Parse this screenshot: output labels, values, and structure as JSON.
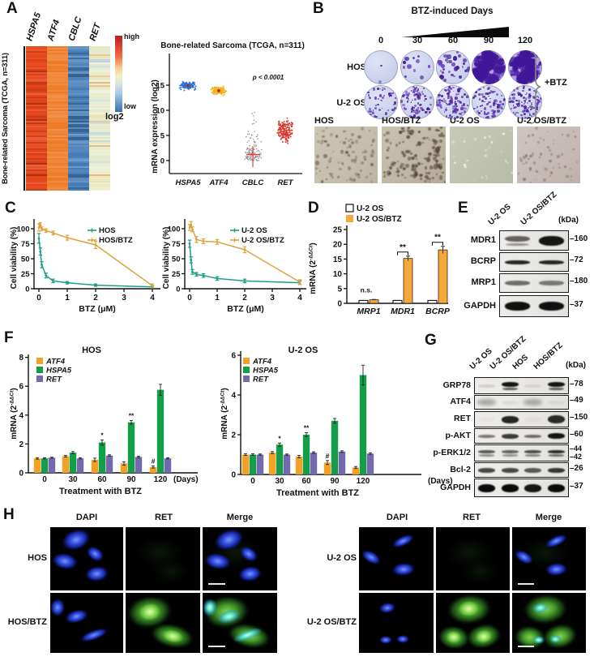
{
  "panels": {
    "A": {
      "label": "A"
    },
    "B": {
      "label": "B"
    },
    "C": {
      "label": "C"
    },
    "D": {
      "label": "D"
    },
    "E": {
      "label": "E"
    },
    "F": {
      "label": "F"
    },
    "G": {
      "label": "G"
    },
    "H": {
      "label": "H"
    }
  },
  "panelA": {
    "heatmap": {
      "side_label": "Bone-related Sarcoma (TCGA, n=311)",
      "columns": [
        "HSPA5",
        "ATF4",
        "CBLC",
        "RET"
      ],
      "colorbar_high": "high",
      "colorbar_low": "low",
      "colorbar_label": "log2"
    }
  },
  "panelB": {
    "title": "BTZ-induced Days",
    "days": [
      "0",
      "30",
      "60",
      "90",
      "120"
    ],
    "rows": [
      {
        "label": "HOS",
        "colony_density": [
          0.02,
          0.1,
          0.28,
          0.88,
          0.97
        ]
      },
      {
        "label": "U-2 OS",
        "colony_density": [
          0.3,
          0.52,
          0.58,
          0.5,
          0.62
        ]
      }
    ],
    "bracket_label": "+BTZ",
    "micrographs": [
      {
        "label": "HOS",
        "tone": "tan"
      },
      {
        "label": "HOS/BTZ",
        "tone": "tan-dense"
      },
      {
        "label": "U-2 OS",
        "tone": "green-smooth"
      },
      {
        "label": "U-2 OS/BTZ",
        "tone": "pink-sparse"
      }
    ]
  },
  "panelE": {
    "lanes": [
      "U-2 OS",
      "U-2 OS/BTZ"
    ],
    "kda_label": "(kDa)",
    "rows": [
      {
        "name": "MDR1",
        "kda": [
          "160"
        ],
        "bands": [
          {
            "v": 0.6,
            "h": 7,
            "d": 1
          },
          {
            "v": 0.95,
            "h": 12
          }
        ]
      },
      {
        "name": "BCRP",
        "kda": [
          "72"
        ],
        "bands": [
          {
            "v": 0.88,
            "h": 5
          },
          {
            "v": 0.88,
            "h": 5
          }
        ]
      },
      {
        "name": "MRP1",
        "kda": [
          "180"
        ],
        "bands": [
          {
            "v": 0.55,
            "h": 6
          },
          {
            "v": 0.5,
            "h": 6
          }
        ]
      },
      {
        "name": "GAPDH",
        "kda": [
          "37"
        ],
        "bands": [
          {
            "v": 0.97,
            "h": 11
          },
          {
            "v": 0.97,
            "h": 11
          }
        ]
      }
    ]
  },
  "panelG": {
    "lanes": [
      "U-2 OS",
      "U-2 OS/BTZ",
      "HOS",
      "HOS/BTZ"
    ],
    "kda_label": "(kDa)",
    "rows": [
      {
        "name": "GRP78",
        "kda": [
          "78"
        ],
        "bands": [
          {
            "v": 0.12,
            "h": 4
          },
          {
            "v": 0.95,
            "h": 6,
            "d": 1
          },
          {
            "v": 0.08,
            "h": 4
          },
          {
            "v": 0.95,
            "h": 6,
            "d": 1
          }
        ]
      },
      {
        "name": "ATF4",
        "kda": [
          "49"
        ],
        "bands": [
          {
            "v": 0.3,
            "h": 8,
            "f": 1
          },
          {
            "v": 0.05,
            "h": 5
          },
          {
            "v": 0.28,
            "h": 8,
            "f": 1
          },
          {
            "v": 0.05,
            "h": 5
          }
        ]
      },
      {
        "name": "RET",
        "kda": [
          "150"
        ],
        "bands": [
          {
            "v": 0.03,
            "h": 6
          },
          {
            "v": 0.88,
            "h": 9
          },
          {
            "v": 0.03,
            "h": 6
          },
          {
            "v": 0.85,
            "h": 10
          }
        ]
      },
      {
        "name": "p-AKT",
        "kda": [
          "60"
        ],
        "bands": [
          {
            "v": 0.5,
            "h": 4
          },
          {
            "v": 0.78,
            "h": 6
          },
          {
            "v": 0.55,
            "h": 4
          },
          {
            "v": 0.95,
            "h": 7
          }
        ]
      },
      {
        "name": "p-ERK1/2",
        "kda": [
          "44",
          "42"
        ],
        "bands": [
          {
            "v": 0.65,
            "h": 4,
            "d": 1
          },
          {
            "v": 0.6,
            "h": 4,
            "d": 1
          },
          {
            "v": 0.7,
            "h": 4,
            "d": 1
          },
          {
            "v": 0.85,
            "h": 4,
            "d": 1
          }
        ]
      },
      {
        "name": "Bcl-2",
        "kda": [
          "26"
        ],
        "bands": [
          {
            "v": 0.72,
            "h": 6
          },
          {
            "v": 0.72,
            "h": 6
          },
          {
            "v": 0.65,
            "h": 6
          },
          {
            "v": 0.8,
            "h": 6
          }
        ]
      },
      {
        "name": "GAPDH",
        "kda": [
          "37"
        ],
        "bands": [
          {
            "v": 1,
            "h": 10
          },
          {
            "v": 1,
            "h": 10
          },
          {
            "v": 0.95,
            "h": 10
          },
          {
            "v": 1,
            "h": 10
          }
        ]
      }
    ]
  },
  "panelH": {
    "columns": [
      "DAPI",
      "RET",
      "Merge"
    ],
    "blocks": [
      {
        "rows": [
          {
            "label": "HOS",
            "ret_expression": "negative"
          },
          {
            "label": "HOS/BTZ",
            "ret_expression": "positive"
          }
        ]
      },
      {
        "rows": [
          {
            "label": "U-2 OS",
            "ret_expression": "negative"
          },
          {
            "label": "U-2 OS/BTZ",
            "ret_expression": "positive"
          }
        ]
      }
    ]
  },
  "chart_data": {
    "tcga_scatter": {
      "type": "scatter",
      "title": "Bone-related Sarcoma (TCGA, n=311)",
      "ylabel": "mRNA expression (log2)",
      "yticks": [
        0,
        5,
        10,
        15
      ],
      "p_label": "p < 0.0001",
      "groups": [
        {
          "name": "HSPA5",
          "color": "#2e6fd0",
          "center": 14.9,
          "spread": 0.75,
          "n": 150,
          "range": [
            12.9,
            16.6
          ],
          "mean_dot": 14.9
        },
        {
          "name": "ATF4",
          "color": "#edb421",
          "center": 13.9,
          "spread": 0.62,
          "n": 150,
          "range": [
            12.5,
            15.5
          ],
          "mean_dot": 13.9
        },
        {
          "name": "CBLC",
          "color": "#8f8f8f",
          "center": 1.3,
          "spread": 1.2,
          "n": 130,
          "range": [
            -0.4,
            10
          ],
          "mixture": true,
          "mean": 1.2,
          "mean_bar": [
            -1.3,
            2.9
          ]
        },
        {
          "name": "RET",
          "color": "#d6392f",
          "center": 5.9,
          "spread": 2.1,
          "n": 170,
          "range": [
            0.3,
            12.4
          ]
        }
      ]
    },
    "viability": [
      {
        "type": "line",
        "ylabel": "Cell viability (%)",
        "xlabel": "BTZ (μM)",
        "yticks": [
          0,
          25,
          50,
          75,
          100
        ],
        "xticks": [
          0,
          1,
          2,
          3,
          4
        ],
        "x": [
          0,
          0.05,
          0.1,
          0.25,
          0.5,
          1,
          2,
          4
        ],
        "series": [
          {
            "name": "HOS",
            "color": "#1e9e88",
            "y": [
              84,
              62,
              40,
              22,
              13,
              10,
              6,
              3
            ],
            "err": [
              8,
              6,
              5,
              4,
              3,
              2,
              2,
              2
            ]
          },
          {
            "name": "HOS/BTZ",
            "color": "#dfa23a",
            "y": [
              102,
              106,
              100,
              97,
              93,
              85,
              73,
              5
            ],
            "err": [
              6,
              4,
              3,
              3,
              3,
              4,
              6,
              3
            ]
          }
        ]
      },
      {
        "type": "line",
        "ylabel": "Cell viability (%)",
        "xlabel": "BTZ (μM)",
        "yticks": [
          0,
          25,
          50,
          75,
          100
        ],
        "xticks": [
          0,
          1,
          2,
          3,
          4
        ],
        "x": [
          0,
          0.05,
          0.1,
          0.25,
          0.5,
          1,
          2,
          4
        ],
        "series": [
          {
            "name": "U-2 OS",
            "color": "#1e9e88",
            "y": [
              75,
              48,
              28,
              24,
              22,
              17,
              13,
              10
            ],
            "err": [
              6,
              5,
              4,
              3,
              3,
              3,
              3,
              3
            ]
          },
          {
            "name": "U-2 OS/BTZ",
            "color": "#dfa23a",
            "y": [
              102,
              107,
              99,
              82,
              79,
              78,
              65,
              11
            ],
            "err": [
              5,
              5,
              4,
              5,
              4,
              4,
              5,
              4
            ]
          }
        ]
      }
    ],
    "abc_transporter_qpcr": {
      "type": "bar",
      "legend": [
        "U-2 OS",
        "U-2 OS/BTZ"
      ],
      "colors": [
        "#ffffff",
        "#f6a83b"
      ],
      "ylabel_parts": [
        "mRNA (2",
        "-ΔΔCt",
        ")"
      ],
      "yticks": [
        0,
        5,
        10,
        15,
        20,
        25
      ],
      "categories": [
        "MRP1",
        "MDR1",
        "BCRP"
      ],
      "series": [
        {
          "name": "U-2 OS",
          "values": [
            1,
            1,
            1
          ],
          "err": [
            0.08,
            0.08,
            0.08
          ]
        },
        {
          "name": "U-2 OS/BTZ",
          "values": [
            1.2,
            15.2,
            18.1
          ],
          "err": [
            0.12,
            0.8,
            1.2
          ]
        }
      ],
      "annotations": [
        {
          "cat": 0,
          "text": "n.s."
        },
        {
          "cat": 1,
          "text": "**",
          "bracket": true
        },
        {
          "cat": 2,
          "text": "**",
          "bracket": true
        }
      ]
    },
    "btz_timecourse_qpcr": [
      {
        "type": "bar",
        "title": "HOS",
        "ylabel_parts": [
          "mRNA (2",
          "-ΔΔCt",
          ")"
        ],
        "yticks": [
          0,
          2,
          4,
          6,
          8
        ],
        "categories": [
          "0",
          "30",
          "60",
          "90",
          "120"
        ],
        "xlabel": "Treatment with BTZ",
        "x_unit": "(Days)",
        "series": [
          {
            "name": "ATF4",
            "color": "#f3a024",
            "values": [
              1.0,
              1.15,
              0.9,
              0.65,
              0.4
            ],
            "err": [
              0.05,
              0.05,
              0.12,
              0.12,
              0.07
            ]
          },
          {
            "name": "HSPA5",
            "color": "#149e49",
            "values": [
              1.0,
              1.4,
              2.1,
              3.5,
              5.75
            ],
            "err": [
              0.04,
              0.07,
              0.18,
              0.13,
              0.38
            ]
          },
          {
            "name": "RET",
            "color": "#7468ae",
            "values": [
              1.05,
              1.0,
              1.2,
              1.1,
              1.0
            ],
            "err": [
              0.03,
              0.04,
              0.05,
              0.05,
              0.04
            ]
          }
        ],
        "annotations": [
          {
            "series": 1,
            "cat": 2,
            "text": "*"
          },
          {
            "series": 1,
            "cat": 3,
            "text": "**"
          },
          {
            "series": 0,
            "cat": 4,
            "text": "#"
          }
        ]
      },
      {
        "type": "bar",
        "title": "U-2 OS",
        "ylabel_parts": [
          "mRNA (2",
          "-ΔΔCt",
          ")"
        ],
        "yticks": [
          0,
          2,
          4,
          6
        ],
        "categories": [
          "0",
          "30",
          "60",
          "90",
          "120"
        ],
        "xlabel": "Treatment with BTZ",
        "x_unit": "(Days)",
        "series": [
          {
            "name": "ATF4",
            "color": "#f3a024",
            "values": [
              1.0,
              1.1,
              0.9,
              0.6,
              0.35
            ],
            "err": [
              0.04,
              0.05,
              0.06,
              0.1,
              0.05
            ]
          },
          {
            "name": "HSPA5",
            "color": "#149e49",
            "values": [
              1.0,
              1.5,
              2.0,
              2.7,
              5.0
            ],
            "err": [
              0.04,
              0.08,
              0.1,
              0.12,
              0.5
            ]
          },
          {
            "name": "RET",
            "color": "#7468ae",
            "values": [
              1.0,
              1.0,
              1.1,
              1.15,
              1.05
            ],
            "err": [
              0.03,
              0.03,
              0.04,
              0.04,
              0.04
            ]
          }
        ],
        "annotations": [
          {
            "series": 1,
            "cat": 1,
            "text": "*"
          },
          {
            "series": 1,
            "cat": 2,
            "text": "**"
          },
          {
            "series": 0,
            "cat": 3,
            "text": "#"
          }
        ]
      }
    ]
  }
}
